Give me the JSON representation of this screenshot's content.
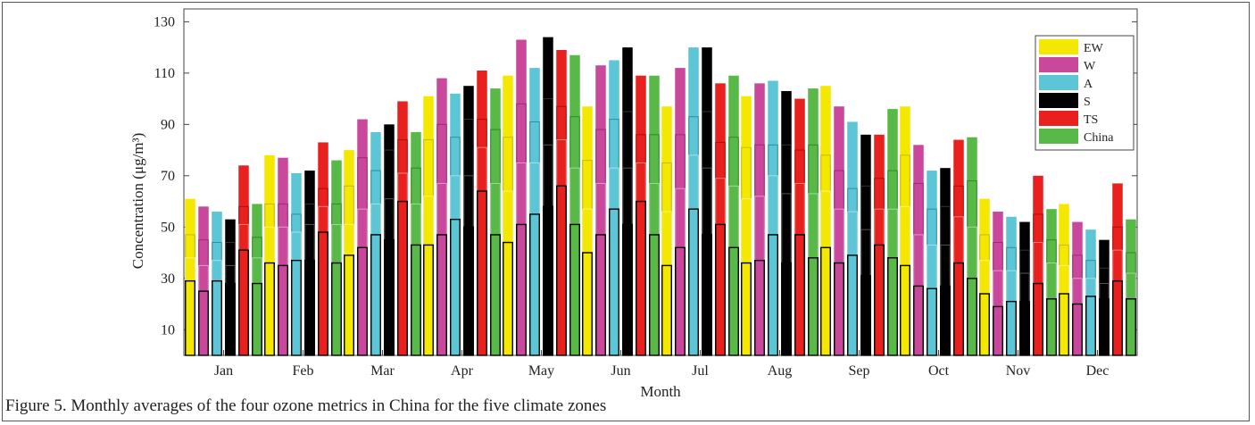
{
  "caption": "Figure 5. Monthly averages of the four ozone metrics in China for the five climate zones",
  "chart_data": {
    "type": "bar",
    "title": "",
    "xlabel": "Month",
    "ylabel": "Concentration (μg/m³)",
    "ylim": [
      0,
      135
    ],
    "yticks": [
      10,
      30,
      50,
      70,
      90,
      110,
      130
    ],
    "grid": false,
    "legend_placement": "top-right",
    "categories": [
      "Jan",
      "Feb",
      "Mar",
      "Apr",
      "May",
      "Jun",
      "Jul",
      "Aug",
      "Sep",
      "Oct",
      "Nov",
      "Dec"
    ],
    "metric_levels": [
      "bottom",
      "third",
      "second",
      "top"
    ],
    "series": [
      {
        "name": "EW",
        "color": "#f5e800",
        "top": [
          61,
          78,
          80,
          101,
          109,
          97,
          97,
          101,
          105,
          97,
          61,
          59
        ],
        "second": [
          47,
          59,
          66,
          84,
          85,
          76,
          75,
          81,
          78,
          78,
          47,
          43
        ],
        "third": [
          38,
          50,
          51,
          62,
          64,
          57,
          56,
          61,
          64,
          58,
          37,
          35
        ],
        "bottom": [
          29,
          36,
          39,
          43,
          44,
          40,
          35,
          36,
          42,
          35,
          24,
          24
        ]
      },
      {
        "name": "W",
        "color": "#c9489c",
        "top": [
          58,
          77,
          92,
          108,
          123,
          113,
          112,
          106,
          97,
          82,
          56,
          52
        ],
        "second": [
          45,
          59,
          77,
          90,
          98,
          88,
          86,
          82,
          72,
          67,
          44,
          39
        ],
        "third": [
          35,
          50,
          57,
          67,
          75,
          67,
          65,
          62,
          57,
          47,
          33,
          30
        ],
        "bottom": [
          25,
          35,
          42,
          47,
          51,
          47,
          42,
          37,
          36,
          27,
          19,
          20
        ]
      },
      {
        "name": "A",
        "color": "#5cc6d6",
        "top": [
          56,
          71,
          87,
          102,
          112,
          115,
          120,
          107,
          91,
          72,
          54,
          49
        ],
        "second": [
          44,
          55,
          72,
          85,
          91,
          92,
          93,
          82,
          65,
          57,
          42,
          37
        ],
        "third": [
          37,
          48,
          59,
          70,
          75,
          73,
          78,
          70,
          56,
          43,
          33,
          30
        ],
        "bottom": [
          29,
          37,
          47,
          53,
          55,
          57,
          57,
          47,
          39,
          26,
          21,
          23
        ]
      },
      {
        "name": "S",
        "color": "#000000",
        "top": [
          53,
          72,
          90,
          105,
          124,
          120,
          120,
          103,
          86,
          73,
          52,
          45
        ],
        "second": [
          44,
          59,
          80,
          92,
          100,
          95,
          95,
          82,
          66,
          58,
          41,
          34
        ],
        "third": [
          35,
          51,
          61,
          70,
          82,
          73,
          73,
          63,
          49,
          43,
          32,
          28
        ],
        "bottom": [
          28,
          37,
          45,
          50,
          58,
          51,
          47,
          36,
          31,
          27,
          21,
          22
        ]
      },
      {
        "name": "TS",
        "color": "#e8201e",
        "top": [
          74,
          83,
          99,
          111,
          119,
          109,
          106,
          100,
          86,
          84,
          70,
          67
        ],
        "second": [
          58,
          65,
          84,
          92,
          97,
          86,
          83,
          80,
          69,
          66,
          55,
          50
        ],
        "third": [
          51,
          58,
          71,
          81,
          84,
          75,
          69,
          67,
          57,
          54,
          44,
          41
        ],
        "bottom": [
          41,
          48,
          60,
          64,
          66,
          60,
          51,
          47,
          43,
          36,
          28,
          29
        ]
      },
      {
        "name": "China",
        "color": "#58b848",
        "top": [
          59,
          76,
          87,
          104,
          117,
          109,
          109,
          104,
          96,
          85,
          57,
          53
        ],
        "second": [
          46,
          59,
          73,
          88,
          93,
          86,
          85,
          82,
          72,
          68,
          45,
          40
        ],
        "third": [
          38,
          51,
          59,
          67,
          73,
          67,
          66,
          63,
          57,
          50,
          36,
          32
        ],
        "bottom": [
          28,
          36,
          43,
          47,
          51,
          47,
          42,
          38,
          38,
          30,
          22,
          22
        ]
      }
    ]
  }
}
